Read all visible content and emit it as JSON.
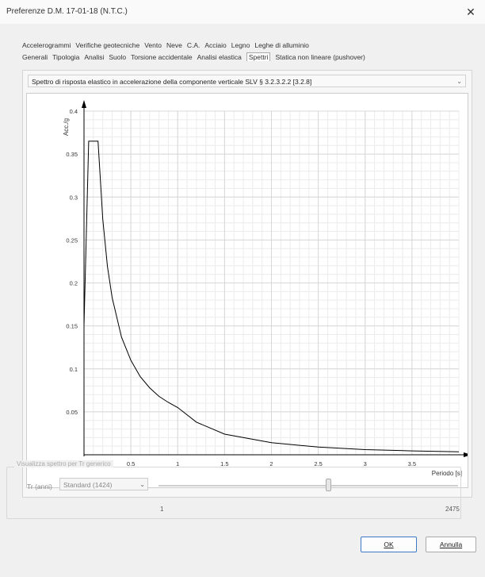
{
  "window": {
    "title": "Preferenze D.M. 17-01-18 (N.T.C.)"
  },
  "tabs": {
    "row1": [
      "Accelerogrammi",
      "Verifiche geotecniche",
      "Vento",
      "Neve",
      "C.A.",
      "Acciaio",
      "Legno",
      "Leghe di alluminio"
    ],
    "row2": [
      "Generali",
      "Tipologia",
      "Analisi",
      "Suolo",
      "Torsione accidentale",
      "Analisi elastica",
      "Spettri",
      "Statica non lineare (pushover)"
    ],
    "active": "Spettri"
  },
  "spectrum_select": {
    "value": "Spettro di risposta elastico in accelerazione della componente verticale SLV § 3.2.3.2.2 [3.2.8]"
  },
  "chart_data": {
    "type": "line",
    "xlabel": "Periodo [s]",
    "ylabel": "Acc./g",
    "xlim": [
      0,
      4.0
    ],
    "ylim": [
      0,
      0.4
    ],
    "xticks": [
      "0.5",
      "1",
      "1.5",
      "2",
      "2.5",
      "3",
      "3.5"
    ],
    "yticks": [
      "0.05",
      "0.1",
      "0.15",
      "0.2",
      "0.25",
      "0.3",
      "0.35",
      "0.4"
    ],
    "grid": true,
    "series": [
      {
        "color": "#000000",
        "x": [
          0,
          0.05,
          0.15,
          0.2,
          0.25,
          0.3,
          0.4,
          0.5,
          0.6,
          0.7,
          0.8,
          0.9,
          1.0,
          1.2,
          1.5,
          2.0,
          2.5,
          3.0,
          3.5,
          4.0
        ],
        "y": [
          0.15,
          0.365,
          0.365,
          0.274,
          0.219,
          0.183,
          0.137,
          0.11,
          0.091,
          0.078,
          0.068,
          0.061,
          0.055,
          0.038,
          0.024,
          0.014,
          0.009,
          0.006,
          0.0045,
          0.0034
        ]
      }
    ]
  },
  "shared_spectra": {
    "group_title": "Visualizza spettro per Tr generico",
    "tr_label": "Tr (anni)",
    "tr_combo_value": "Standard (1424)",
    "slider_min_label": "1",
    "slider_max_label": "2475",
    "slider_value": 1424
  },
  "buttons": {
    "ok": "OK",
    "cancel": "Annulla"
  }
}
